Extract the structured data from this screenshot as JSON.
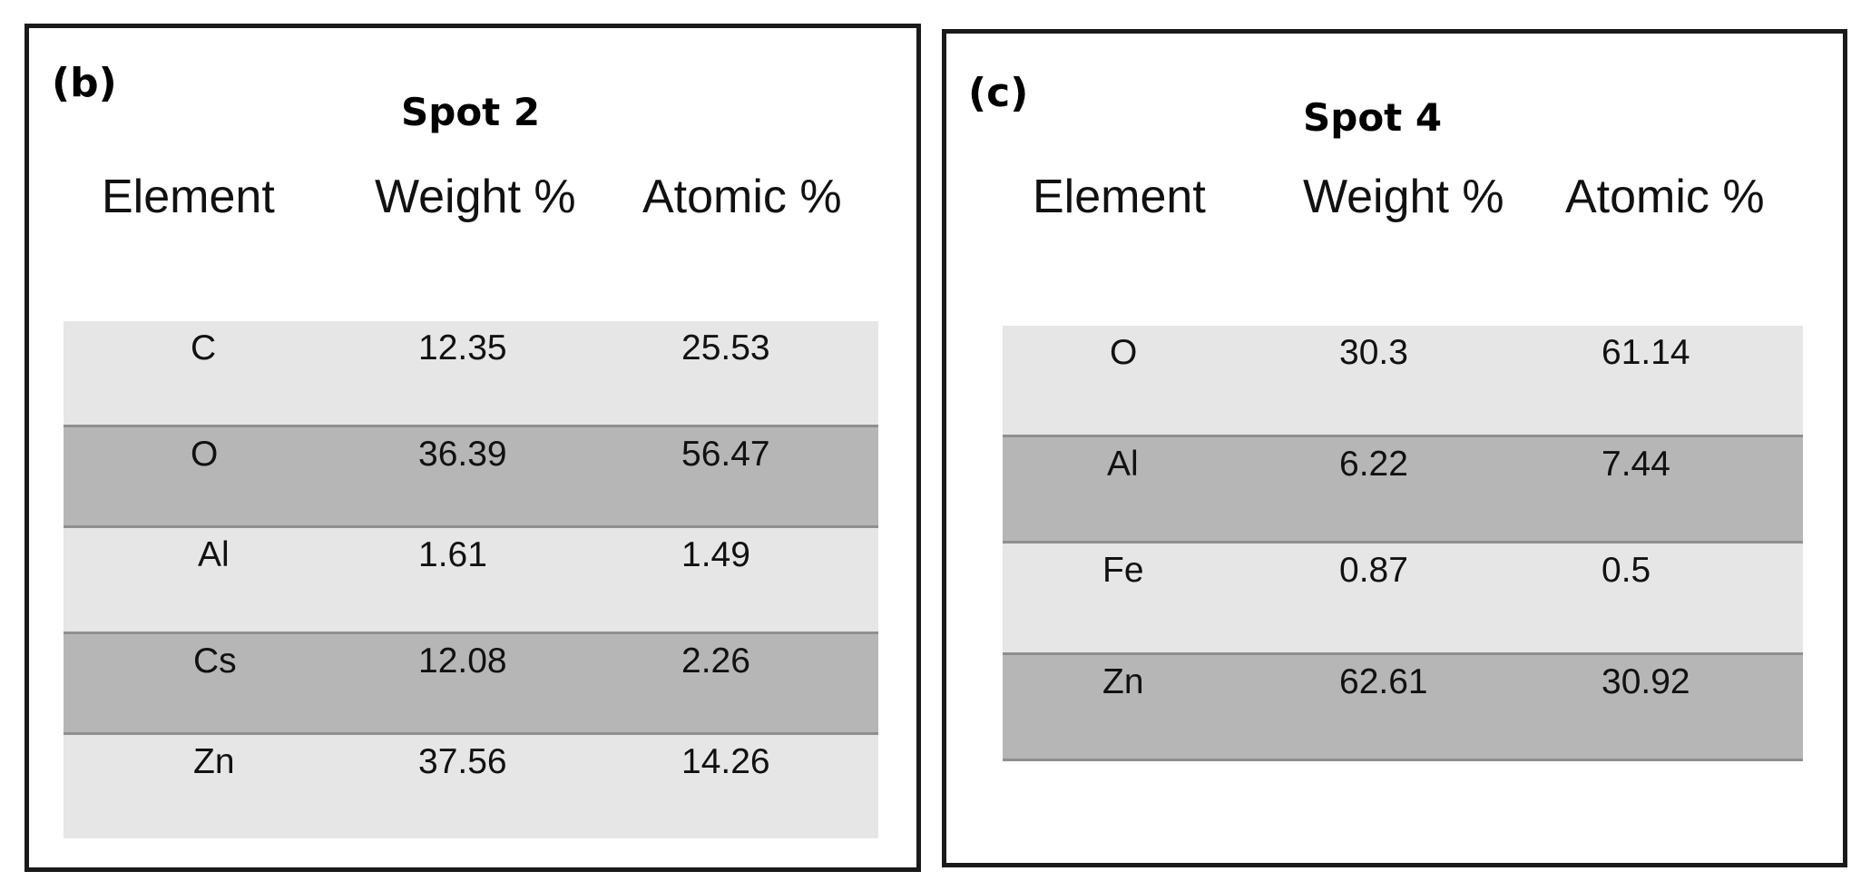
{
  "chart_data": [
    {
      "type": "table",
      "panel_label": "(b)",
      "title": "Spot 2",
      "columns": [
        "Element",
        "Weight %",
        "Atomic %"
      ],
      "rows": [
        [
          "C",
          "12.35",
          "25.53"
        ],
        [
          "O",
          "36.39",
          "56.47"
        ],
        [
          "Al",
          "1.61",
          "1.49"
        ],
        [
          "Cs",
          "12.08",
          "2.26"
        ],
        [
          "Zn",
          "37.56",
          "14.26"
        ]
      ]
    },
    {
      "type": "table",
      "panel_label": "(c)",
      "title": "Spot 4",
      "columns": [
        "Element",
        "Weight %",
        "Atomic %"
      ],
      "rows": [
        [
          "O",
          "30.3",
          "61.14"
        ],
        [
          "Al",
          "6.22",
          "7.44"
        ],
        [
          "Fe",
          "0.87",
          "0.5"
        ],
        [
          "Zn",
          "62.61",
          "30.92"
        ]
      ]
    }
  ],
  "colors": {
    "row_light": "#e6e6e6",
    "row_dark": "#b6b6b6",
    "border": "#1a1a1a"
  }
}
